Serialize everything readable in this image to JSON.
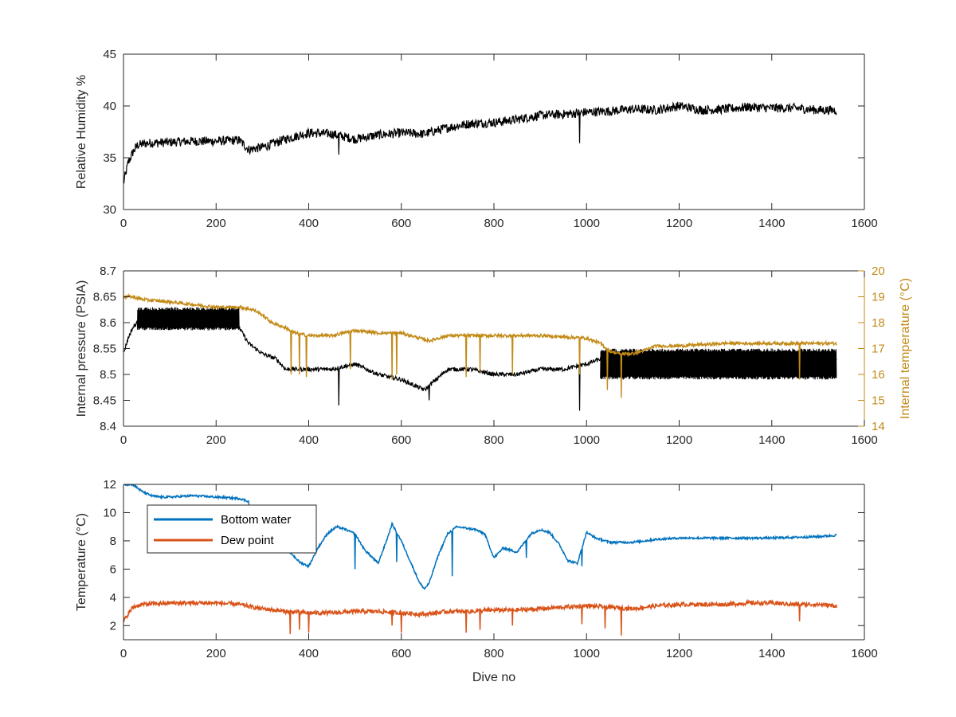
{
  "chart_data": [
    {
      "type": "line",
      "title": "",
      "xlabel": "",
      "ylabel": "Relative Humidity %",
      "xlim": [
        0,
        1600
      ],
      "ylim": [
        30,
        45
      ],
      "xticks": [
        "0",
        "200",
        "400",
        "600",
        "800",
        "1000",
        "1200",
        "1400",
        "1600"
      ],
      "yticks": [
        "30",
        "35",
        "40",
        "45"
      ],
      "colors": {
        "series": "#000000"
      },
      "series": [
        {
          "x": [
            0,
            10,
            20,
            30,
            50,
            100,
            150,
            200,
            250,
            270,
            300,
            350,
            400,
            450,
            500,
            550,
            600,
            650,
            700,
            750,
            800,
            850,
            900,
            950,
            1000,
            1050,
            1100,
            1150,
            1200,
            1250,
            1300,
            1350,
            1400,
            1450,
            1500,
            1540
          ],
          "y": [
            32.5,
            34.5,
            35.5,
            36.2,
            36.4,
            36.5,
            36.6,
            36.6,
            36.7,
            35.8,
            36.0,
            36.8,
            37.4,
            37.3,
            36.8,
            37.2,
            37.4,
            37.3,
            37.9,
            38.3,
            38.4,
            38.7,
            39.1,
            39.2,
            39.4,
            39.5,
            39.7,
            39.6,
            40.0,
            39.6,
            39.7,
            39.9,
            39.8,
            39.8,
            39.6,
            39.6
          ],
          "spikes": [
            {
              "x": 465,
              "y": 35.3
            },
            {
              "x": 985,
              "y": 36.4
            }
          ]
        }
      ]
    },
    {
      "type": "line",
      "title": "",
      "xlabel": "",
      "ylabel": "Internal pressure (PSIA)",
      "ylabel_right": "Internal temperature (°C)",
      "xlim": [
        0,
        1600
      ],
      "ylim": [
        8.4,
        8.7
      ],
      "ylim_right": [
        14,
        20
      ],
      "xticks": [
        "0",
        "200",
        "400",
        "600",
        "800",
        "1000",
        "1200",
        "1400",
        "1600"
      ],
      "yticks": [
        "8.4",
        "8.45",
        "8.5",
        "8.55",
        "8.6",
        "8.65",
        "8.7"
      ],
      "yticks_right": [
        "14",
        "15",
        "16",
        "17",
        "18",
        "19",
        "20"
      ],
      "colors": {
        "pressure": "#000000",
        "temperature": "#C28A17"
      },
      "series": [
        {
          "axis": "left",
          "x": [
            0,
            10,
            20,
            30,
            60,
            100,
            150,
            200,
            250,
            270,
            300,
            330,
            350,
            380,
            400,
            450,
            500,
            550,
            600,
            650,
            700,
            750,
            800,
            850,
            900,
            950,
            1000,
            1030,
            1050,
            1080,
            1100,
            1150,
            1200,
            1250,
            1300,
            1350,
            1400,
            1450,
            1500,
            1540
          ],
          "y": [
            8.54,
            8.57,
            8.59,
            8.6,
            8.6,
            8.6,
            8.6,
            8.6,
            8.59,
            8.56,
            8.54,
            8.53,
            8.51,
            8.51,
            8.51,
            8.51,
            8.52,
            8.5,
            8.49,
            8.47,
            8.51,
            8.51,
            8.5,
            8.5,
            8.51,
            8.51,
            8.52,
            8.53,
            8.52,
            8.51,
            8.51,
            8.52,
            8.52,
            8.53,
            8.53,
            8.53,
            8.53,
            8.53,
            8.53,
            8.53
          ],
          "band": [
            {
              "x0": 30,
              "x1": 250,
              "y0": 8.585,
              "y1": 8.63
            },
            {
              "x0": 1030,
              "x1": 1540,
              "y0": 8.49,
              "y1": 8.55
            }
          ],
          "spikes": [
            {
              "x": 465,
              "y": 8.44
            },
            {
              "x": 985,
              "y": 8.43
            },
            {
              "x": 660,
              "y": 8.45
            }
          ]
        },
        {
          "axis": "right",
          "x": [
            0,
            20,
            40,
            100,
            150,
            200,
            250,
            280,
            300,
            320,
            350,
            370,
            400,
            450,
            500,
            550,
            600,
            640,
            660,
            700,
            800,
            900,
            1000,
            1030,
            1050,
            1070,
            1100,
            1120,
            1150,
            1200,
            1300,
            1400,
            1500,
            1540
          ],
          "y": [
            19.0,
            19.0,
            18.9,
            18.8,
            18.7,
            18.6,
            18.6,
            18.5,
            18.3,
            18.0,
            17.8,
            17.6,
            17.5,
            17.5,
            17.7,
            17.6,
            17.6,
            17.4,
            17.3,
            17.5,
            17.5,
            17.5,
            17.4,
            17.2,
            16.9,
            16.8,
            16.8,
            16.9,
            17.1,
            17.1,
            17.2,
            17.2,
            17.2,
            17.2
          ],
          "spikes": [
            {
              "x": 362,
              "y": 16.0
            },
            {
              "x": 380,
              "y": 16.0
            },
            {
              "x": 395,
              "y": 15.9
            },
            {
              "x": 490,
              "y": 16.2
            },
            {
              "x": 580,
              "y": 15.8
            },
            {
              "x": 590,
              "y": 16.0
            },
            {
              "x": 740,
              "y": 15.9
            },
            {
              "x": 770,
              "y": 16.1
            },
            {
              "x": 840,
              "y": 16.0
            },
            {
              "x": 985,
              "y": 16.0
            },
            {
              "x": 1045,
              "y": 15.4
            },
            {
              "x": 1075,
              "y": 15.1
            },
            {
              "x": 1460,
              "y": 15.8
            }
          ]
        }
      ]
    },
    {
      "type": "line",
      "title": "",
      "xlabel": "Dive no",
      "ylabel": "Temperature (°C)",
      "xlim": [
        0,
        1600
      ],
      "ylim": [
        1,
        12
      ],
      "xticks": [
        "0",
        "200",
        "400",
        "600",
        "800",
        "1000",
        "1200",
        "1400",
        "1600"
      ],
      "yticks": [
        "2",
        "4",
        "6",
        "8",
        "10",
        "12"
      ],
      "legend": "upper-left",
      "series": [
        {
          "name": "Bottom water",
          "color": "#0072BD",
          "x": [
            0,
            20,
            40,
            60,
            80,
            100,
            150,
            200,
            250,
            270,
            280,
            300,
            330,
            360,
            380,
            400,
            420,
            440,
            460,
            480,
            500,
            520,
            550,
            570,
            580,
            600,
            620,
            640,
            650,
            660,
            680,
            700,
            720,
            760,
            780,
            800,
            820,
            850,
            880,
            900,
            920,
            940,
            960,
            980,
            1000,
            1020,
            1050,
            1100,
            1150,
            1200,
            1300,
            1400,
            1500,
            1540
          ],
          "y": [
            12.0,
            12.0,
            11.5,
            11.2,
            11.1,
            11.1,
            11.2,
            11.1,
            11.0,
            10.8,
            8.0,
            7.8,
            7.4,
            7.2,
            6.5,
            6.2,
            7.5,
            8.5,
            9.0,
            8.8,
            8.5,
            7.4,
            6.4,
            8.2,
            9.2,
            8.0,
            6.5,
            5.0,
            4.6,
            5.0,
            7.0,
            8.5,
            9.0,
            8.8,
            8.5,
            6.8,
            7.5,
            7.2,
            8.5,
            8.8,
            8.6,
            7.8,
            6.6,
            6.4,
            8.6,
            8.2,
            7.9,
            7.9,
            8.1,
            8.2,
            8.2,
            8.2,
            8.3,
            8.4
          ],
          "spikes": [
            {
              "x": 500,
              "y": 6.0
            },
            {
              "x": 590,
              "y": 6.5
            },
            {
              "x": 710,
              "y": 5.5
            },
            {
              "x": 870,
              "y": 6.8
            },
            {
              "x": 990,
              "y": 6.2
            }
          ]
        },
        {
          "name": "Dew point",
          "color": "#D95319",
          "x": [
            0,
            20,
            40,
            100,
            150,
            200,
            250,
            280,
            300,
            350,
            400,
            450,
            500,
            550,
            600,
            650,
            700,
            750,
            800,
            850,
            900,
            950,
            1000,
            1050,
            1100,
            1150,
            1200,
            1250,
            1300,
            1350,
            1400,
            1450,
            1500,
            1540
          ],
          "y": [
            2.3,
            3.3,
            3.5,
            3.6,
            3.6,
            3.6,
            3.5,
            3.3,
            3.2,
            3.0,
            2.9,
            2.9,
            3.0,
            3.0,
            2.9,
            2.8,
            3.0,
            3.0,
            3.1,
            3.1,
            3.2,
            3.3,
            3.4,
            3.3,
            3.2,
            3.4,
            3.5,
            3.5,
            3.5,
            3.6,
            3.6,
            3.5,
            3.5,
            3.4
          ],
          "spikes": [
            {
              "x": 360,
              "y": 1.4
            },
            {
              "x": 380,
              "y": 1.7
            },
            {
              "x": 400,
              "y": 1.5
            },
            {
              "x": 580,
              "y": 2.0
            },
            {
              "x": 600,
              "y": 1.5
            },
            {
              "x": 740,
              "y": 1.5
            },
            {
              "x": 770,
              "y": 1.7
            },
            {
              "x": 840,
              "y": 2.0
            },
            {
              "x": 990,
              "y": 2.1
            },
            {
              "x": 1040,
              "y": 1.8
            },
            {
              "x": 1075,
              "y": 1.3
            },
            {
              "x": 1460,
              "y": 2.3
            }
          ]
        }
      ]
    }
  ]
}
